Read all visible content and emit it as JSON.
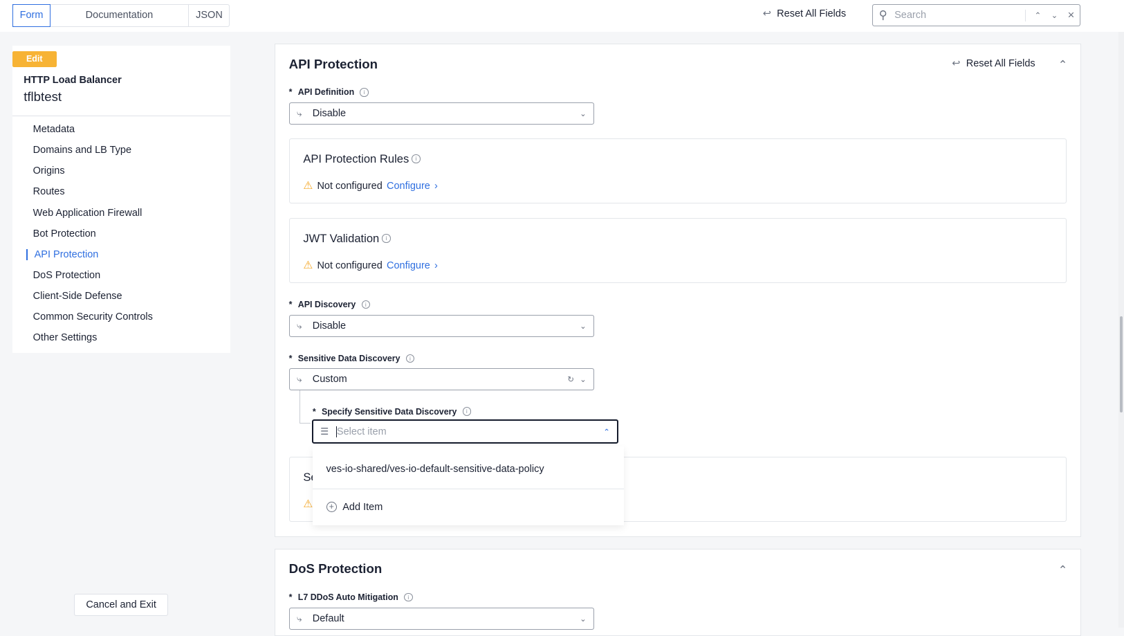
{
  "topbar": {
    "tabs": [
      {
        "label": "Form",
        "active": true
      },
      {
        "label": "Documentation"
      },
      {
        "label": "JSON"
      }
    ],
    "reset_label": "Reset All Fields",
    "search_placeholder": "Search"
  },
  "sidebar": {
    "badge": "Edit",
    "type": "HTTP Load Balancer",
    "name": "tflbtest",
    "items": [
      "Metadata",
      "Domains and LB Type",
      "Origins",
      "Routes",
      "Web Application Firewall",
      "Bot Protection",
      "API Protection",
      "DoS Protection",
      "Client-Side Defense",
      "Common Security Controls",
      "Other Settings"
    ],
    "active": "API Protection",
    "cancel_label": "Cancel and Exit"
  },
  "api_protection": {
    "title": "API Protection",
    "reset_label": "Reset All Fields",
    "api_definition": {
      "label": "API Definition",
      "value": "Disable"
    },
    "rules": {
      "title": "API Protection Rules",
      "status": "Not configured",
      "action": "Configure"
    },
    "jwt": {
      "title": "JWT Validation",
      "status": "Not configured",
      "action": "Configure"
    },
    "api_discovery": {
      "label": "API Discovery",
      "value": "Disable"
    },
    "sensitive": {
      "label": "Sensitive Data Discovery",
      "value": "Custom"
    },
    "specify": {
      "label": "Specify Sensitive Data Discovery",
      "placeholder": "Select item",
      "options": [
        "ves-io-shared/ves-io-default-sensitive-data-policy"
      ],
      "add_label": "Add Item"
    },
    "hidden_card_title_fragment": "Se"
  },
  "dos": {
    "title": "DoS Protection",
    "l7": {
      "label": "L7 DDoS Auto Mitigation",
      "value": "Default"
    }
  },
  "colors": {
    "accent": "#2f6fe0",
    "warning": "#f5a623",
    "badge": "#f7b334"
  }
}
